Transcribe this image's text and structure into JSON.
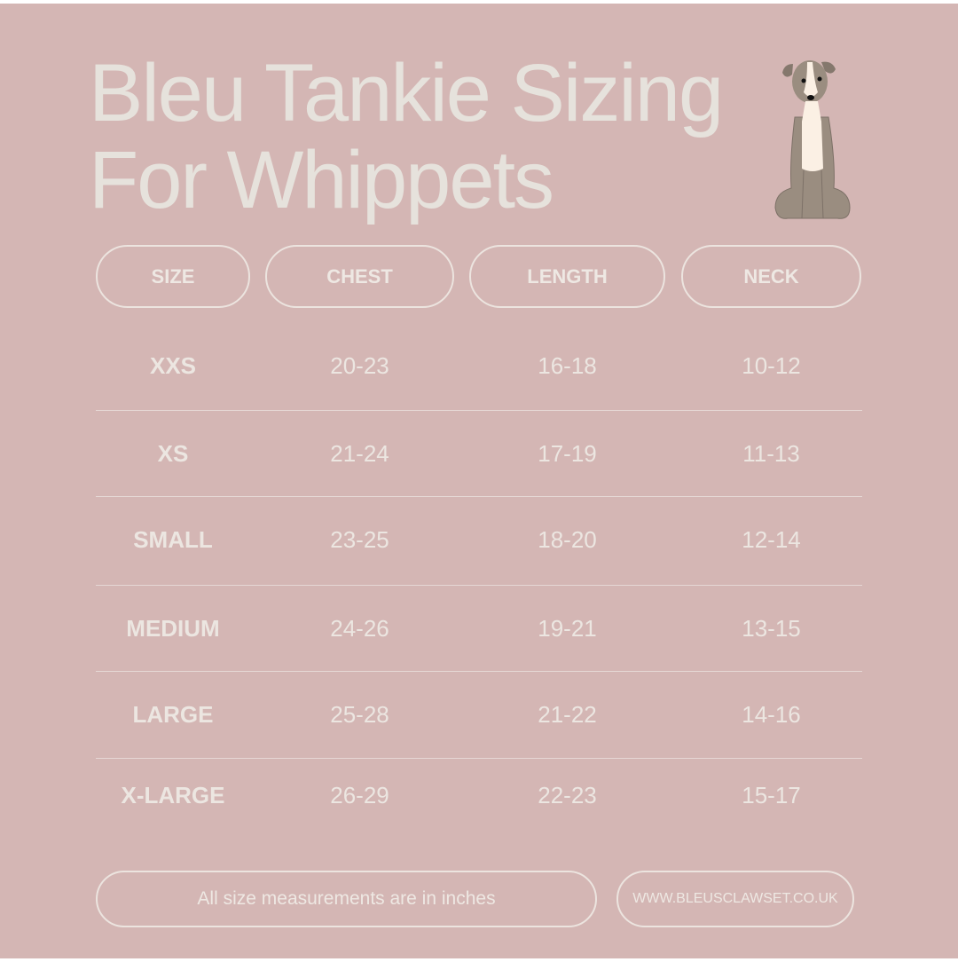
{
  "title": {
    "line1": "Bleu Tankie Sizing",
    "line2": "For Whippets"
  },
  "illustration": "whippet-dog-icon",
  "colors": {
    "background": "#d4b6b4",
    "text": "#ece6e1",
    "dog_body": "#9a8d80",
    "dog_chest": "#fbf0e4"
  },
  "table": {
    "headers": [
      "SIZE",
      "CHEST",
      "LENGTH",
      "NECK"
    ],
    "rows": [
      {
        "size": "XXS",
        "chest": "20-23",
        "length": "16-18",
        "neck": "10-12"
      },
      {
        "size": "XS",
        "chest": "21-24",
        "length": "17-19",
        "neck": "11-13"
      },
      {
        "size": "SMALL",
        "chest": "23-25",
        "length": "18-20",
        "neck": "12-14"
      },
      {
        "size": "MEDIUM",
        "chest": "24-26",
        "length": "19-21",
        "neck": "13-15"
      },
      {
        "size": "LARGE",
        "chest": "25-28",
        "length": "21-22",
        "neck": "14-16"
      },
      {
        "size": "X-LARGE",
        "chest": "26-29",
        "length": "22-23",
        "neck": "15-17"
      }
    ]
  },
  "footer": {
    "note": "All size measurements are in inches",
    "website": "WWW.BLEUSCLAWSET.CO.UK"
  }
}
